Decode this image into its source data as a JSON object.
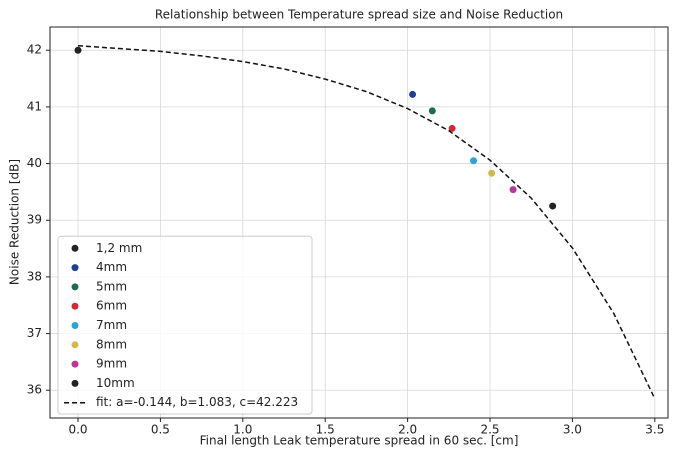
{
  "chart_data": {
    "type": "scatter",
    "title": "Relationship between Temperature spread size and Noise Reduction",
    "x_label": "Final length Leak temperature spread in 60 sec. [cm]",
    "y_label": "Noise Reduction [dB]",
    "xlim": [
      -0.17,
      3.58
    ],
    "ylim": [
      35.51,
      42.41
    ],
    "xticks": [
      {
        "value": 0,
        "label": "0.0"
      },
      {
        "value": 0.5,
        "label": "0.5"
      },
      {
        "value": 1,
        "label": "1.0"
      },
      {
        "value": 1.5,
        "label": "1.5"
      },
      {
        "value": 2,
        "label": "2.0"
      },
      {
        "value": 2.5,
        "label": "2.5"
      },
      {
        "value": 3,
        "label": "3.0"
      },
      {
        "value": 3.5,
        "label": "3.5"
      }
    ],
    "yticks": [
      36,
      37,
      38,
      39,
      40,
      41,
      42
    ],
    "grid": true,
    "legend": "lower left",
    "series": [
      {
        "name": "1,2 mm",
        "color": "#222222",
        "x": [
          0.0
        ],
        "values": [
          42.0
        ]
      },
      {
        "name": "4mm",
        "color": "#1f3f8f",
        "x": [
          2.03
        ],
        "values": [
          41.22
        ]
      },
      {
        "name": "5mm",
        "color": "#1d6e4e",
        "x": [
          2.15
        ],
        "values": [
          40.93
        ]
      },
      {
        "name": "6mm",
        "color": "#d62738",
        "x": [
          2.27
        ],
        "values": [
          40.62
        ]
      },
      {
        "name": "7mm",
        "color": "#2aa6d6",
        "x": [
          2.4
        ],
        "values": [
          40.05
        ]
      },
      {
        "name": "8mm",
        "color": "#d4b94a",
        "x": [
          2.51
        ],
        "values": [
          39.83
        ]
      },
      {
        "name": "9mm",
        "color": "#b8389a",
        "x": [
          2.64
        ],
        "values": [
          39.54
        ]
      },
      {
        "name": "10mm",
        "color": "#222222",
        "x": [
          2.88
        ],
        "values": [
          39.25
        ]
      },
      {
        "name": "fit: a=-0.144, b=1.083, c=42.223",
        "type": "line",
        "style": "dashed",
        "color": "#111111",
        "x": [
          0,
          0.25,
          0.5,
          0.75,
          1,
          1.25,
          1.5,
          1.75,
          2,
          2.25,
          2.5,
          2.75,
          3,
          3.25,
          3.5
        ],
        "values": [
          42.08,
          42.03,
          41.98,
          41.9,
          41.8,
          41.67,
          41.49,
          41.27,
          40.97,
          40.58,
          40.06,
          39.39,
          38.51,
          37.36,
          35.85
        ]
      }
    ]
  }
}
